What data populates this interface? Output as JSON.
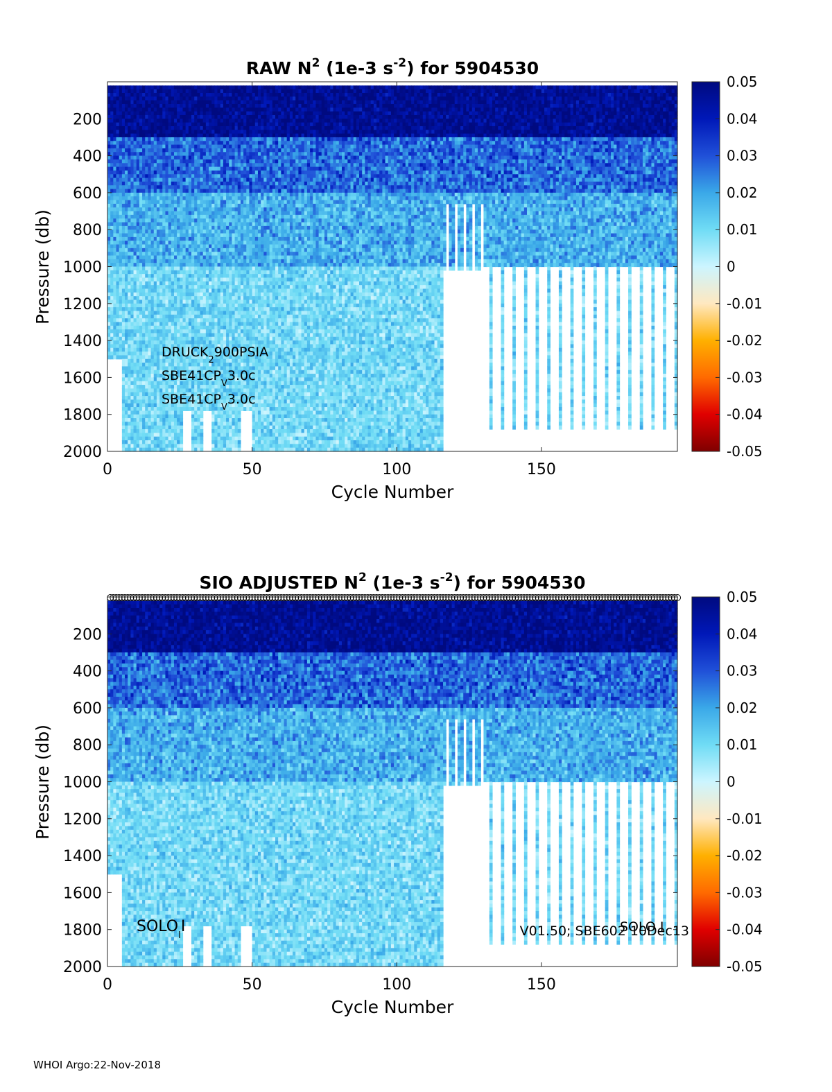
{
  "footer": "WHOI Argo:22-Nov-2018",
  "colors": {
    "colormap": [
      "#7f0000",
      "#e00000",
      "#ff6a00",
      "#ffb000",
      "#ffe8c0",
      "#ccf5ff",
      "#70dcf5",
      "#3aa8e8",
      "#2050d8",
      "#0018b8",
      "#000a80"
    ],
    "data_gap": "#ffffff"
  },
  "chart_data": [
    {
      "type": "heatmap",
      "title_parts": [
        "RAW N",
        "2",
        " (1e-3 s",
        "-2",
        ") for 5904530"
      ],
      "xlabel": "Cycle Number",
      "ylabel": "Pressure (db)",
      "xlim": [
        0,
        197
      ],
      "ylim": [
        2000,
        0
      ],
      "xticks": [
        0,
        50,
        100,
        150
      ],
      "yticks": [
        200,
        400,
        600,
        800,
        1000,
        1200,
        1400,
        1600,
        1800,
        2000
      ],
      "colorbar": {
        "range": [
          -0.05,
          0.05
        ],
        "ticks": [
          "0.05",
          "0.04",
          "0.03",
          "0.02",
          "0.01",
          "0",
          "-0.01",
          "-0.02",
          "-0.03",
          "-0.04",
          "-0.05"
        ]
      },
      "annotations": [
        {
          "parts": [
            "DRUCK",
            "2",
            "900PSIA"
          ]
        },
        {
          "parts": [
            "SBE41CP",
            "V",
            "3.0c"
          ]
        },
        {
          "parts": [
            "SBE41CP",
            "V",
            "3.0c"
          ]
        }
      ]
    },
    {
      "type": "heatmap",
      "title_parts": [
        "SIO  ADJUSTED N",
        "2",
        " (1e-3 s",
        "-2",
        ") for 5904530"
      ],
      "xlabel": "Cycle Number",
      "ylabel": "Pressure (db)",
      "xlim": [
        0,
        197
      ],
      "ylim": [
        2000,
        0
      ],
      "xticks": [
        0,
        50,
        100,
        150
      ],
      "yticks": [
        200,
        400,
        600,
        800,
        1000,
        1200,
        1400,
        1600,
        1800,
        2000
      ],
      "colorbar": {
        "range": [
          -0.05,
          0.05
        ],
        "ticks": [
          "0.05",
          "0.04",
          "0.03",
          "0.02",
          "0.01",
          "0",
          "-0.01",
          "-0.02",
          "-0.03",
          "-0.04",
          "-0.05"
        ]
      },
      "annotations": [
        {
          "parts": [
            "SOLO",
            "I",
            "I"
          ]
        },
        {
          "parts": [
            "V01.50; SBE602 10Dec13"
          ]
        },
        {
          "parts": [
            "SOLO I"
          ]
        }
      ]
    }
  ]
}
